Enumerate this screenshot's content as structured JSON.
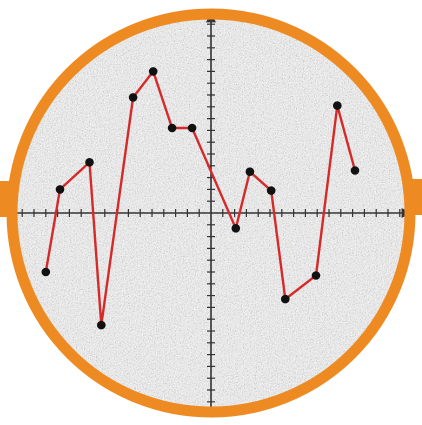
{
  "colors": {
    "ring": "#ee8a22",
    "line": "#d42a2a",
    "point": "#111111",
    "axis": "#333333",
    "background": "#ffffff",
    "noise_dark": "#6f6f6f",
    "noise_light": "#f4f4f4"
  },
  "chart_data": {
    "type": "line",
    "title": "",
    "xlabel": "",
    "ylabel": "",
    "grid": false,
    "legend": "none",
    "tick_labels": "none",
    "xlim": [
      -17,
      17
    ],
    "ylim": [
      -17,
      17
    ],
    "series": [
      {
        "name": "",
        "x": [
          -14,
          -12.8,
          -10.3,
          -9.3,
          -6.6,
          -4.9,
          -3.3,
          -1.6,
          2.1,
          3.3,
          5.1,
          6.3,
          8.9,
          10.7,
          12.2
        ],
        "y": [
          -5,
          2,
          4.3,
          -9.5,
          9.8,
          12,
          7.2,
          7.2,
          -1.3,
          3.5,
          1.9,
          -7.3,
          -5.3,
          9.1,
          3.6
        ]
      }
    ]
  }
}
